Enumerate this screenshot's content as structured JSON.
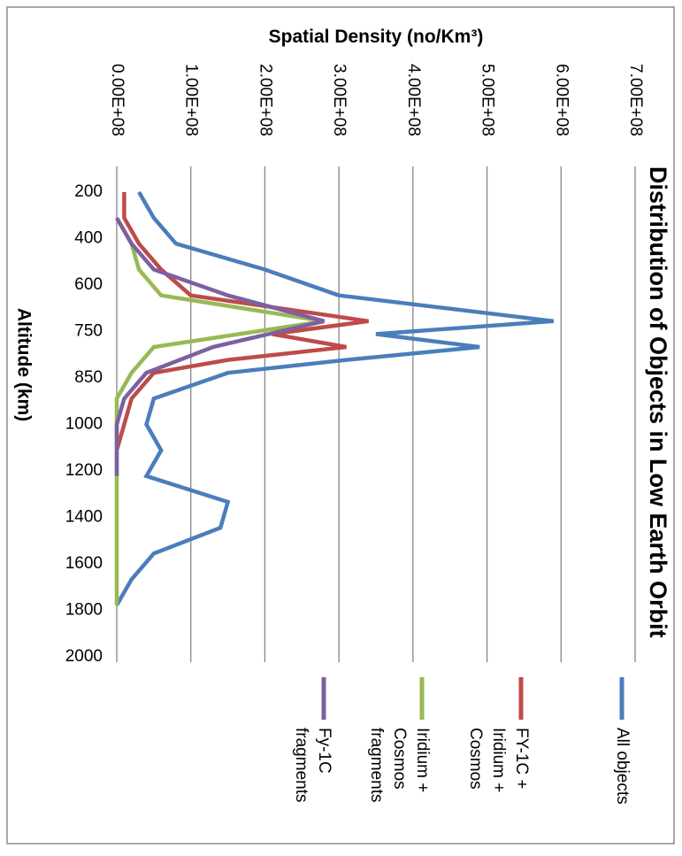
{
  "chart_data": {
    "type": "line",
    "title": "Distribution of Objects in Low Earth Orbit",
    "xlabel": "Altitude (km)",
    "ylabel": "Spatial Density (no/Km³)",
    "ylim": [
      0,
      700000000
    ],
    "yticks": [
      "0.00E+08",
      "1.00E+08",
      "2.00E+08",
      "3.00E+08",
      "4.00E+08",
      "5.00E+08",
      "6.00E+08",
      "7.00E+08"
    ],
    "categories": [
      "200",
      "400",
      "600",
      "750",
      "850",
      "1000",
      "1200",
      "1400",
      "1600",
      "1800",
      "2000"
    ],
    "grid": true,
    "legend_position": "right",
    "series": [
      {
        "name": "All objects",
        "color": "#4a7ebb",
        "points": [
          {
            "alt": 200,
            "value": 30000000
          },
          {
            "alt": 300,
            "value": 50000000
          },
          {
            "alt": 400,
            "value": 80000000
          },
          {
            "alt": 500,
            "value": 200000000
          },
          {
            "alt": 600,
            "value": 300000000
          },
          {
            "alt": 700,
            "value": 590000000
          },
          {
            "alt": 750,
            "value": 350000000
          },
          {
            "alt": 800,
            "value": 490000000
          },
          {
            "alt": 850,
            "value": 310000000
          },
          {
            "alt": 900,
            "value": 150000000
          },
          {
            "alt": 1000,
            "value": 50000000
          },
          {
            "alt": 1100,
            "value": 40000000
          },
          {
            "alt": 1200,
            "value": 60000000
          },
          {
            "alt": 1300,
            "value": 40000000
          },
          {
            "alt": 1400,
            "value": 150000000
          },
          {
            "alt": 1500,
            "value": 140000000
          },
          {
            "alt": 1600,
            "value": 50000000
          },
          {
            "alt": 1700,
            "value": 20000000
          },
          {
            "alt": 1800,
            "value": 0
          }
        ]
      },
      {
        "name": "FY-1C + Iridium + Cosmos",
        "legend_lines": [
          "FY-1C +",
          "Iridium +",
          "Cosmos"
        ],
        "color": "#be4b48",
        "points": [
          {
            "alt": 200,
            "value": 10000000
          },
          {
            "alt": 300,
            "value": 10000000
          },
          {
            "alt": 400,
            "value": 30000000
          },
          {
            "alt": 500,
            "value": 60000000
          },
          {
            "alt": 600,
            "value": 100000000
          },
          {
            "alt": 700,
            "value": 340000000
          },
          {
            "alt": 750,
            "value": 210000000
          },
          {
            "alt": 800,
            "value": 310000000
          },
          {
            "alt": 850,
            "value": 150000000
          },
          {
            "alt": 900,
            "value": 50000000
          },
          {
            "alt": 1000,
            "value": 20000000
          },
          {
            "alt": 1100,
            "value": 10000000
          },
          {
            "alt": 1200,
            "value": 0
          }
        ]
      },
      {
        "name": "Iridium + Cosmos fragments",
        "legend_lines": [
          "Iridium +",
          "Cosmos",
          "fragments"
        ],
        "color": "#98b954",
        "points": [
          {
            "alt": 300,
            "value": 0
          },
          {
            "alt": 400,
            "value": 20000000
          },
          {
            "alt": 500,
            "value": 30000000
          },
          {
            "alt": 600,
            "value": 60000000
          },
          {
            "alt": 700,
            "value": 280000000
          },
          {
            "alt": 800,
            "value": 50000000
          },
          {
            "alt": 900,
            "value": 20000000
          },
          {
            "alt": 1000,
            "value": 0
          },
          {
            "alt": 1800,
            "value": 0
          }
        ]
      },
      {
        "name": "Fy-1C fragments",
        "legend_lines": [
          "Fy-1C",
          "fragments"
        ],
        "color": "#7d60a0",
        "points": [
          {
            "alt": 300,
            "value": 0
          },
          {
            "alt": 400,
            "value": 20000000
          },
          {
            "alt": 500,
            "value": 50000000
          },
          {
            "alt": 600,
            "value": 150000000
          },
          {
            "alt": 700,
            "value": 280000000
          },
          {
            "alt": 800,
            "value": 130000000
          },
          {
            "alt": 900,
            "value": 40000000
          },
          {
            "alt": 1000,
            "value": 10000000
          },
          {
            "alt": 1100,
            "value": 0
          },
          {
            "alt": 1300,
            "value": 0
          }
        ]
      }
    ]
  }
}
